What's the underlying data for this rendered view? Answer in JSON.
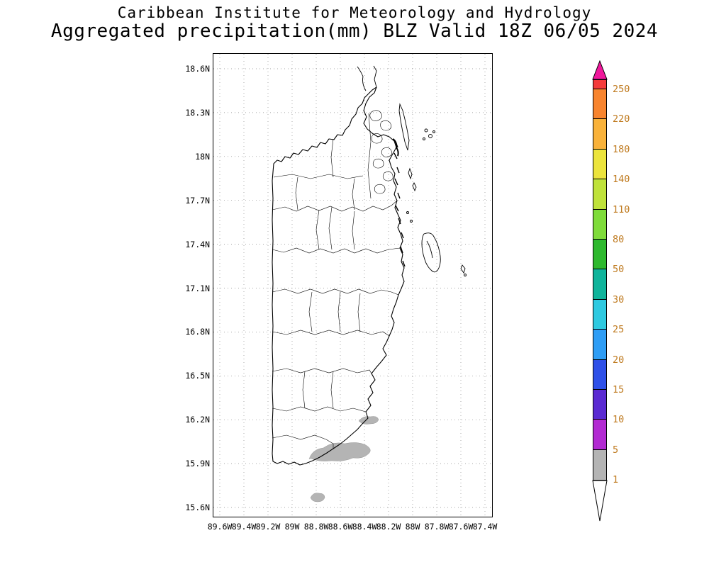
{
  "title": {
    "line1": "Caribbean Institute for Meteorology and Hydrology",
    "line2": "Aggregated precipitation(mm) BLZ Valid 18Z 06/05 2024"
  },
  "map": {
    "region": "Belize",
    "lat_labels": [
      "18.6N",
      "18.3N",
      "18N",
      "17.7N",
      "17.4N",
      "17.1N",
      "16.8N",
      "16.5N",
      "16.2N",
      "15.9N",
      "15.6N"
    ],
    "lon_labels": [
      "89.6W",
      "89.4W",
      "89.2W",
      "89W",
      "88.8W",
      "88.6W",
      "88.4W",
      "88.2W",
      "88W",
      "87.8W",
      "87.6W",
      "87.4W"
    ]
  },
  "colorbar": {
    "tick_values": [
      250,
      220,
      180,
      140,
      110,
      80,
      50,
      30,
      25,
      20,
      15,
      10,
      5,
      1
    ],
    "segment_colors_top_to_bottom": [
      "#f43b3b",
      "#f8842e",
      "#f9b23a",
      "#ece43c",
      "#bfe23a",
      "#7fdc3a",
      "#2eb92e",
      "#0fb49b",
      "#2ec9e0",
      "#2e9df5",
      "#2e50e8",
      "#5a2ad2",
      "#b22ad2",
      "#b4b4b4"
    ],
    "above_max_color": "#f0189c",
    "below_min_color": "#ffffff",
    "label_color": "#bf7a1f",
    "no_precip_fill": "#b4b4b4"
  }
}
